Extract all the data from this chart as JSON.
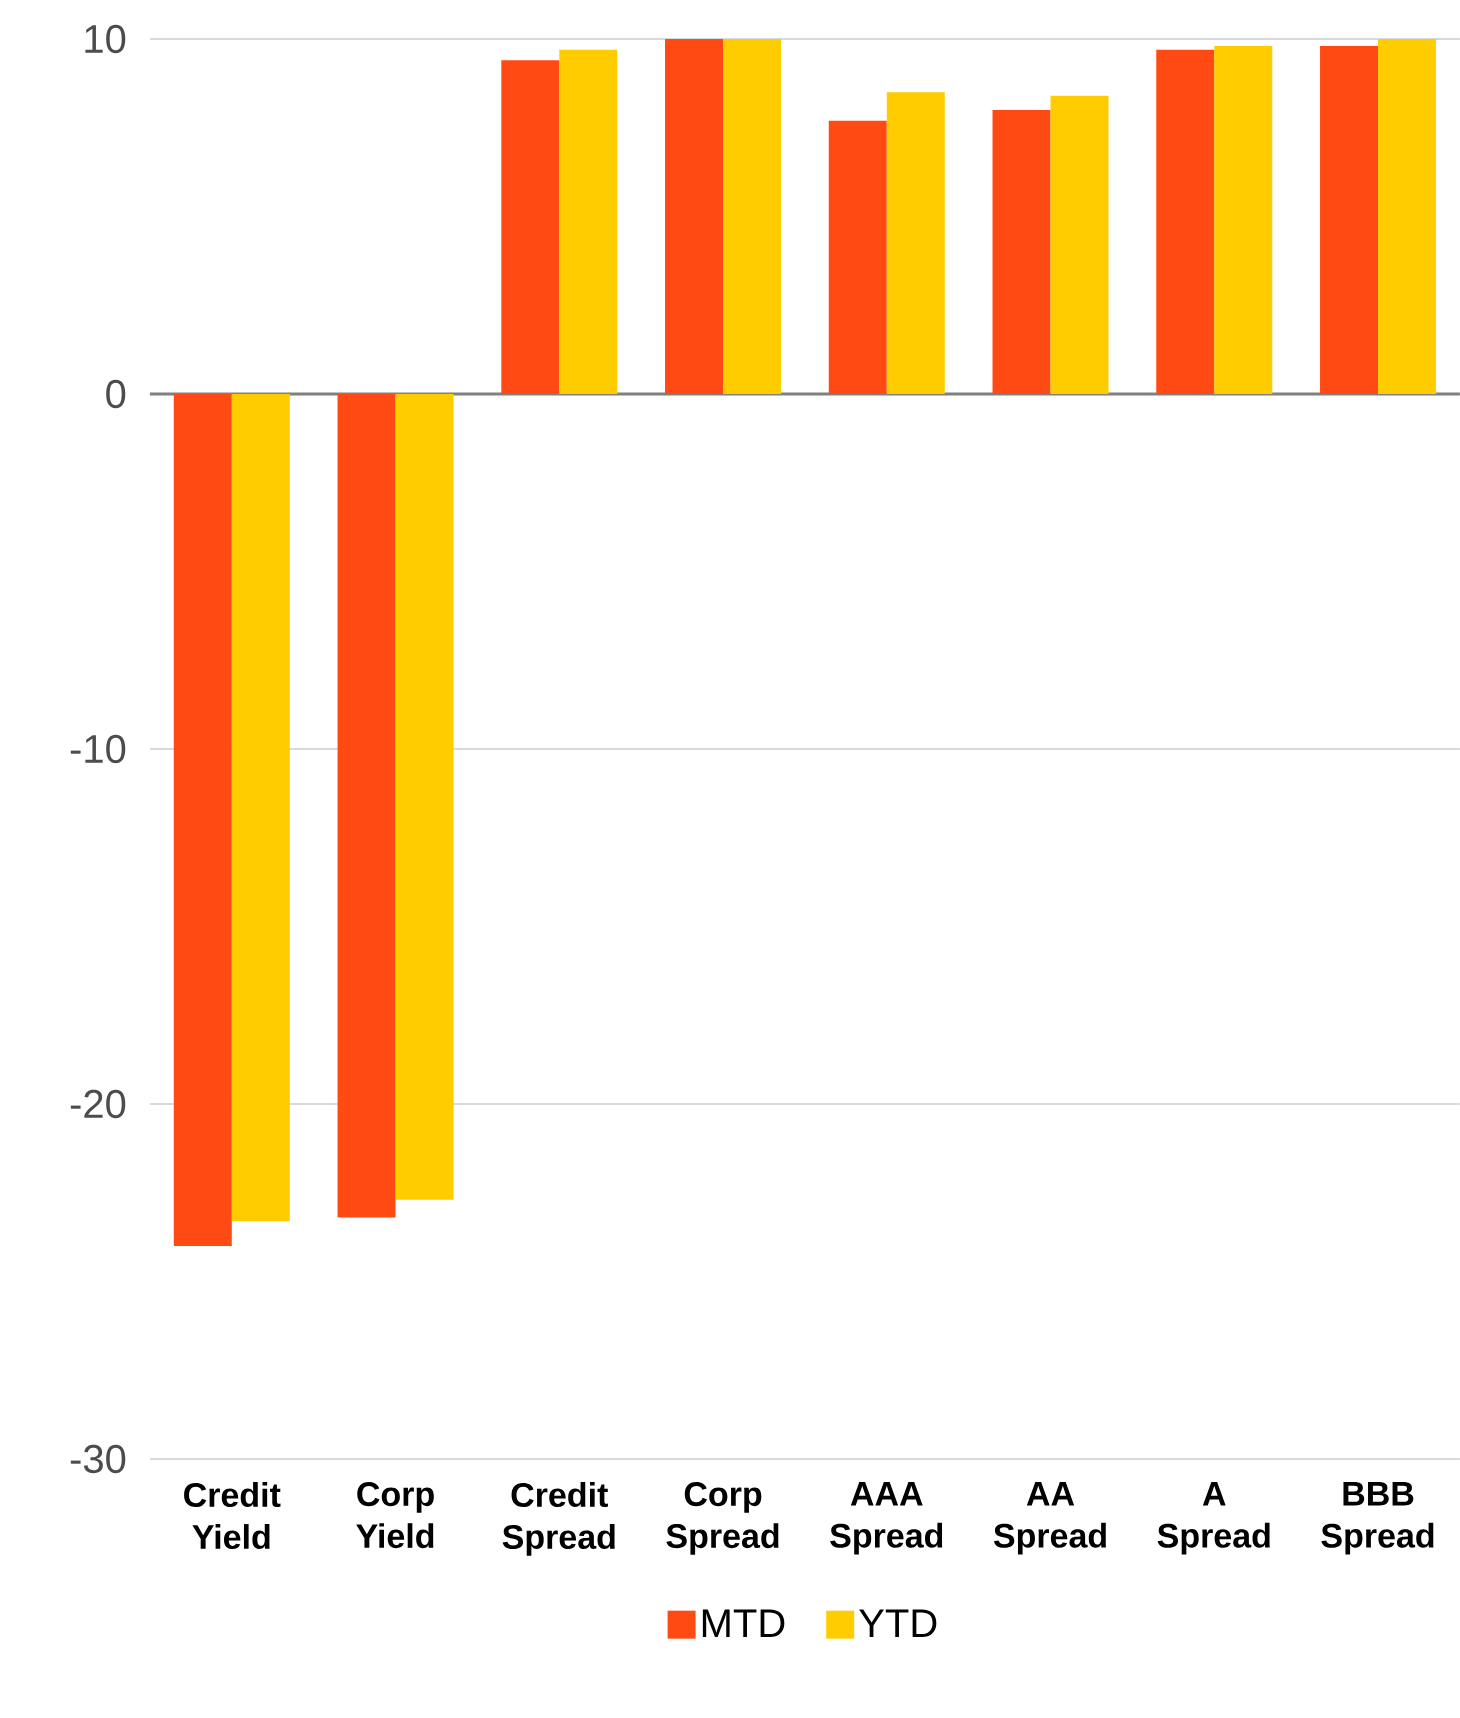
{
  "chart_data": {
    "type": "bar",
    "categories": [
      "Credit Yield",
      "Corp Yield",
      "Credit Spread",
      "Corp Spread",
      "AAA Spread",
      "AA Spread",
      "A Spread",
      "BBB Spread"
    ],
    "series": [
      {
        "name": "MTD",
        "color": "#ff4a14",
        "values": [
          -24.0,
          -23.2,
          9.4,
          10,
          7.7,
          8.0,
          9.7,
          9.8
        ]
      },
      {
        "name": "YTD",
        "color": "#ffcc00",
        "values": [
          -23.3,
          -22.7,
          9.7,
          10,
          8.5,
          8.4,
          9.8,
          10
        ]
      }
    ],
    "ylim": [
      -30,
      10
    ],
    "yticks": [
      -30,
      -20,
      -10,
      0,
      10
    ],
    "grid": "y",
    "legend": "bottom"
  }
}
